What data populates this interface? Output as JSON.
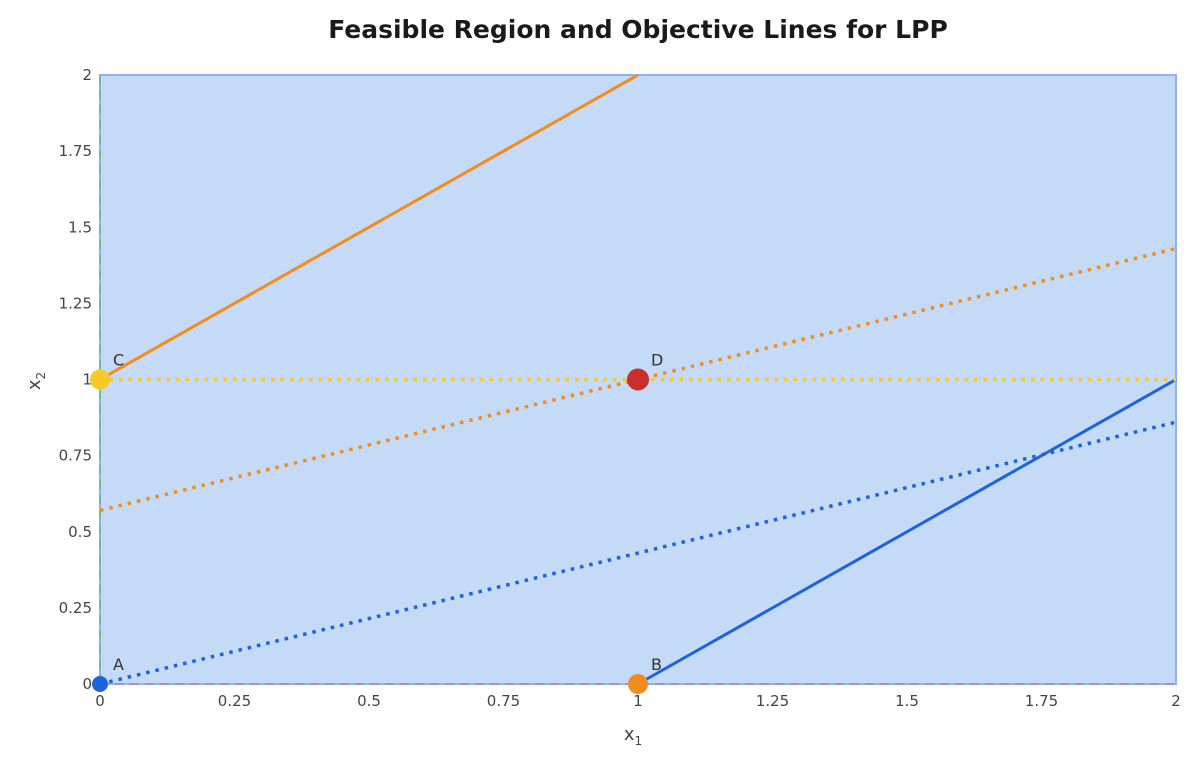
{
  "chart_data": {
    "type": "line",
    "title": "Feasible Region and Objective Lines for LPP",
    "xlabel": "x",
    "xlabel_sub": "1",
    "ylabel": "x",
    "ylabel_sub": "2",
    "xlim": [
      0,
      2
    ],
    "ylim": [
      0,
      2
    ],
    "xticks": [
      0,
      0.25,
      0.5,
      0.75,
      1,
      1.25,
      1.5,
      1.75,
      2
    ],
    "xtick_labels": [
      "0",
      "0.25",
      "0.5",
      "0.75",
      "1",
      "1.25",
      "1.5",
      "1.75",
      "2"
    ],
    "yticks": [
      0,
      0.25,
      0.5,
      0.75,
      1,
      1.25,
      1.5,
      1.75,
      2
    ],
    "ytick_labels": [
      "0",
      "0.25",
      "0.5",
      "0.75",
      "1",
      "1.25",
      "1.5",
      "1.75",
      "2"
    ],
    "feasible_region": {
      "polygon": [
        [
          0,
          0
        ],
        [
          2,
          0
        ],
        [
          2,
          2
        ],
        [
          0,
          2
        ]
      ],
      "fill": "#c5daf7",
      "border": "#8cb4f0"
    },
    "series": [
      {
        "x": [
          0,
          2
        ],
        "y": [
          0,
          0
        ],
        "color": "#a78bd4",
        "style": "dashed",
        "width": 2
      },
      {
        "x": [
          0,
          0
        ],
        "y": [
          0,
          2
        ],
        "color": "#6fb5a8",
        "style": "dashed",
        "width": 2
      },
      {
        "x": [
          0,
          1
        ],
        "y": [
          1.0,
          2.0
        ],
        "color": "#f28c1c",
        "style": "solid",
        "width": 3
      },
      {
        "x": [
          1,
          2
        ],
        "y": [
          0,
          1.0
        ],
        "color": "#1d63dc",
        "style": "solid",
        "width": 3
      },
      {
        "x": [
          0,
          2
        ],
        "y": [
          1,
          1
        ],
        "color": "#f5ca2a",
        "style": "dotted",
        "width": 3.5
      },
      {
        "x": [
          0,
          2
        ],
        "y": [
          0.57,
          1.43
        ],
        "color": "#f28c1c",
        "style": "dotted",
        "width": 3.5
      },
      {
        "x": [
          0,
          2
        ],
        "y": [
          0,
          0.86
        ],
        "color": "#1d63dc",
        "style": "dotted",
        "width": 3.5
      }
    ],
    "points": [
      {
        "label": "A",
        "x": 0,
        "y": 0,
        "color": "#1d63dc",
        "r": 8
      },
      {
        "label": "B",
        "x": 1,
        "y": 0,
        "color": "#f28c1c",
        "r": 10
      },
      {
        "label": "C",
        "x": 0,
        "y": 1,
        "color": "#f5ca2a",
        "r": 10
      },
      {
        "label": "D",
        "x": 1,
        "y": 1,
        "color": "#c9302c",
        "r": 11
      }
    ],
    "grid": false,
    "legend": "none"
  }
}
